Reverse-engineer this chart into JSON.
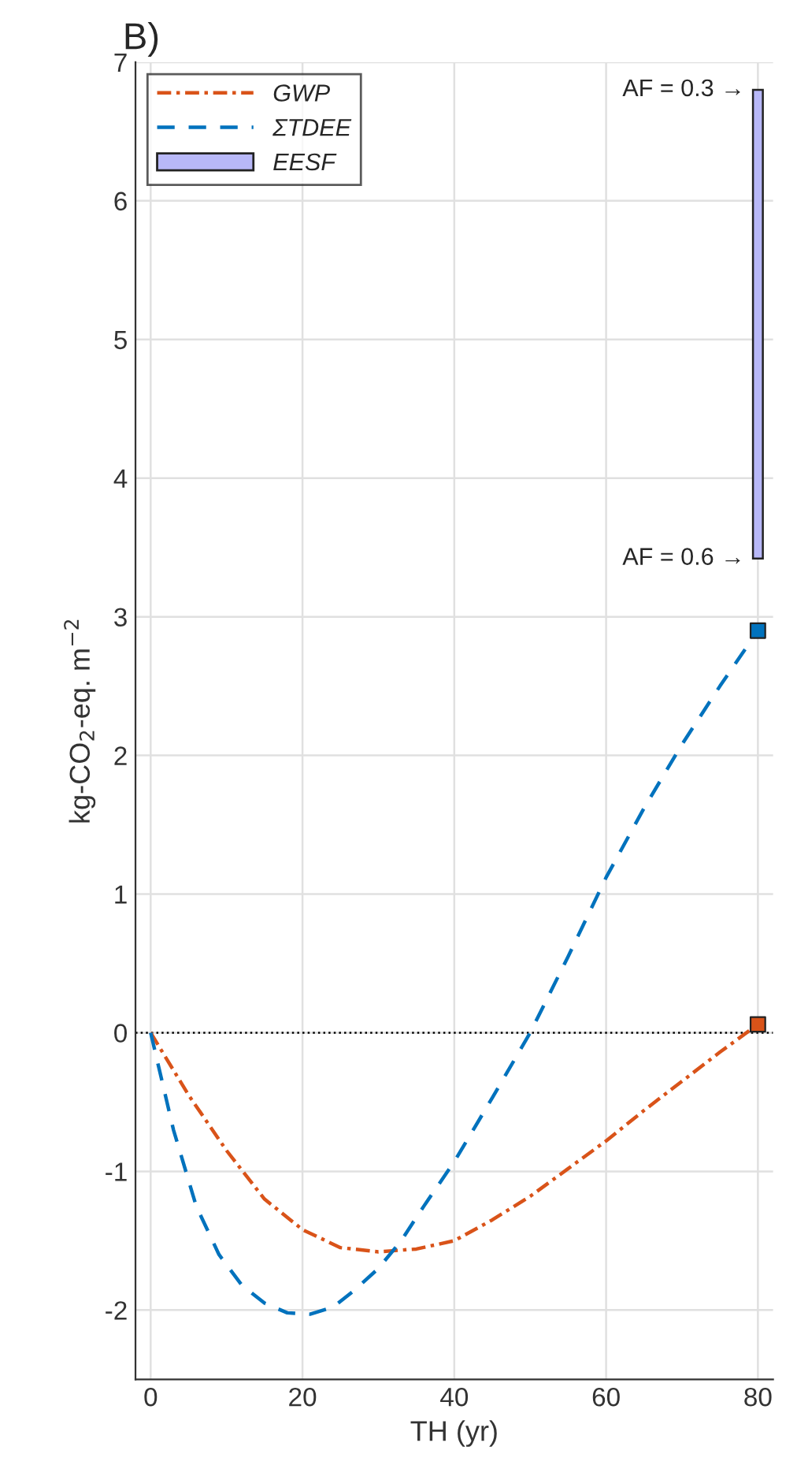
{
  "chart_data": {
    "type": "line",
    "title": "B)",
    "xlabel": "TH (yr)",
    "ylabel": "kg-CO$_{2}$-eq. m$^{−2}$",
    "xlim": [
      -2,
      82
    ],
    "xticks": [
      0,
      20,
      40,
      60,
      80
    ],
    "ylim": [
      -2.5,
      7
    ],
    "yticks": [
      -2,
      -1,
      0,
      1,
      2,
      3,
      4,
      5,
      6,
      7
    ],
    "grid": true,
    "legend": "top left",
    "series": [
      {
        "name": "GWP",
        "color": "#d95319",
        "line_style": "dashdot",
        "x": [
          0,
          5,
          10,
          15,
          20,
          25,
          30,
          35,
          40,
          45,
          50,
          55,
          60,
          65,
          70,
          75,
          80
        ],
        "values": [
          0,
          -0.45,
          -0.85,
          -1.2,
          -1.42,
          -1.55,
          -1.58,
          -1.56,
          -1.5,
          -1.35,
          -1.18,
          -0.98,
          -0.78,
          -0.56,
          -0.35,
          -0.14,
          0.06
        ]
      },
      {
        "name": "ΣTDEE",
        "color": "#0072bd",
        "line_style": "dashed",
        "x": [
          0,
          3,
          6,
          9,
          12,
          15,
          18,
          21,
          24,
          27,
          30,
          33,
          36,
          40,
          45,
          50,
          55,
          60,
          65,
          70,
          75,
          80
        ],
        "values": [
          0,
          -0.7,
          -1.25,
          -1.6,
          -1.82,
          -1.95,
          -2.02,
          -2.03,
          -1.98,
          -1.85,
          -1.7,
          -1.5,
          -1.25,
          -0.93,
          -0.47,
          0.0,
          0.55,
          1.12,
          1.62,
          2.08,
          2.5,
          2.9
        ]
      },
      {
        "name": "EESF",
        "type": "bar",
        "color": "#b8b8f8",
        "x": [
          80
        ],
        "values": [
          3.38
        ],
        "base": [
          3.42
        ]
      },
      {
        "type": "scatter",
        "color": "#d95319",
        "marker": "square",
        "x": [
          80
        ],
        "values": [
          0.06
        ]
      },
      {
        "type": "scatter",
        "color": "#0072bd",
        "marker": "square",
        "x": [
          80
        ],
        "values": [
          2.9
        ]
      }
    ],
    "ref_lines": [
      {
        "axis": "y",
        "value": 0,
        "color": "#000000",
        "line_style": "dotted"
      }
    ],
    "annotations": [
      {
        "text": "AF = 0.3 →",
        "x": 80,
        "y": 6.8
      },
      {
        "text": "AF = 0.6 →",
        "x": 80,
        "y": 3.42
      }
    ]
  }
}
